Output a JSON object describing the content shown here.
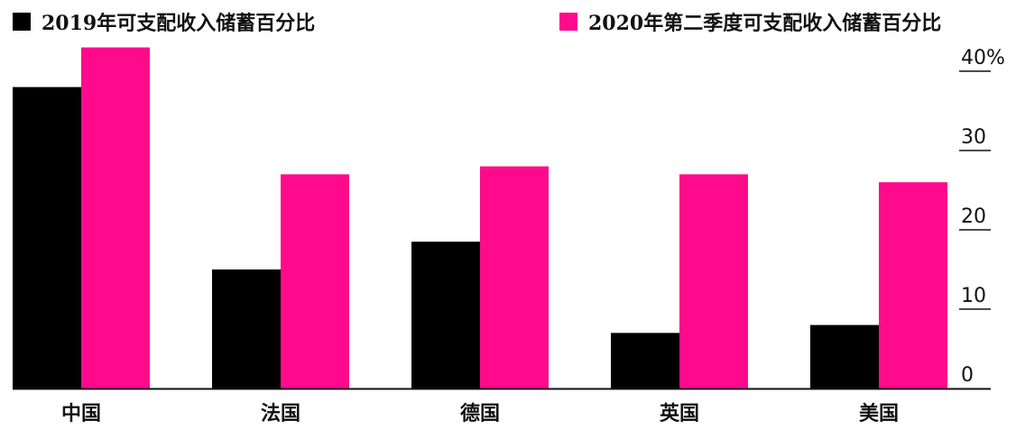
{
  "colors": {
    "s2019": "#000000",
    "s2020": "#ff0a8c",
    "axis": "#111111"
  },
  "chart_data": {
    "type": "bar",
    "categories": [
      "中国",
      "法国",
      "德国",
      "英国",
      "美国"
    ],
    "series": [
      {
        "name": "2019年可支配收入储蓄百分比",
        "values": [
          38,
          15,
          18.5,
          7,
          8
        ]
      },
      {
        "name": "2020年第二季度可支配收入储蓄百分比",
        "values": [
          43,
          27,
          28,
          27,
          26
        ]
      }
    ],
    "yticks": [
      "0",
      "10",
      "20",
      "30",
      "40%"
    ],
    "ytick_values": [
      0,
      10,
      20,
      30,
      40
    ],
    "ylim": [
      0,
      45
    ],
    "title": "",
    "xlabel": "",
    "ylabel": "",
    "legend_position": "top"
  }
}
